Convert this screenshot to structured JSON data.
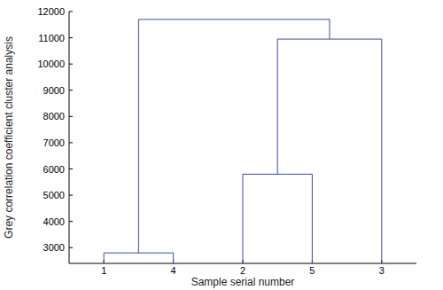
{
  "chart_data": {
    "type": "dendrogram",
    "y_label": "Grey correlation coefficient cluster analysis",
    "x_label": "Sample serial number",
    "categories": [
      "1",
      "4",
      "2",
      "5",
      "3"
    ],
    "links": [
      {
        "left": [
          "1"
        ],
        "right": [
          "4"
        ],
        "height": 2800
      },
      {
        "left": [
          "2"
        ],
        "right": [
          "5"
        ],
        "height": 5800
      },
      {
        "left": [
          "2",
          "5"
        ],
        "right": [
          "3"
        ],
        "height": 10950
      },
      {
        "left": [
          "1",
          "4"
        ],
        "right": [
          "2",
          "5",
          "3"
        ],
        "height": 11700
      }
    ],
    "color": "#3c4aa8",
    "ylim": [
      2400,
      12000
    ],
    "yticks": [
      3000,
      4000,
      5000,
      6000,
      7000,
      8000,
      9000,
      10000,
      11000,
      12000
    ],
    "grid": false
  }
}
